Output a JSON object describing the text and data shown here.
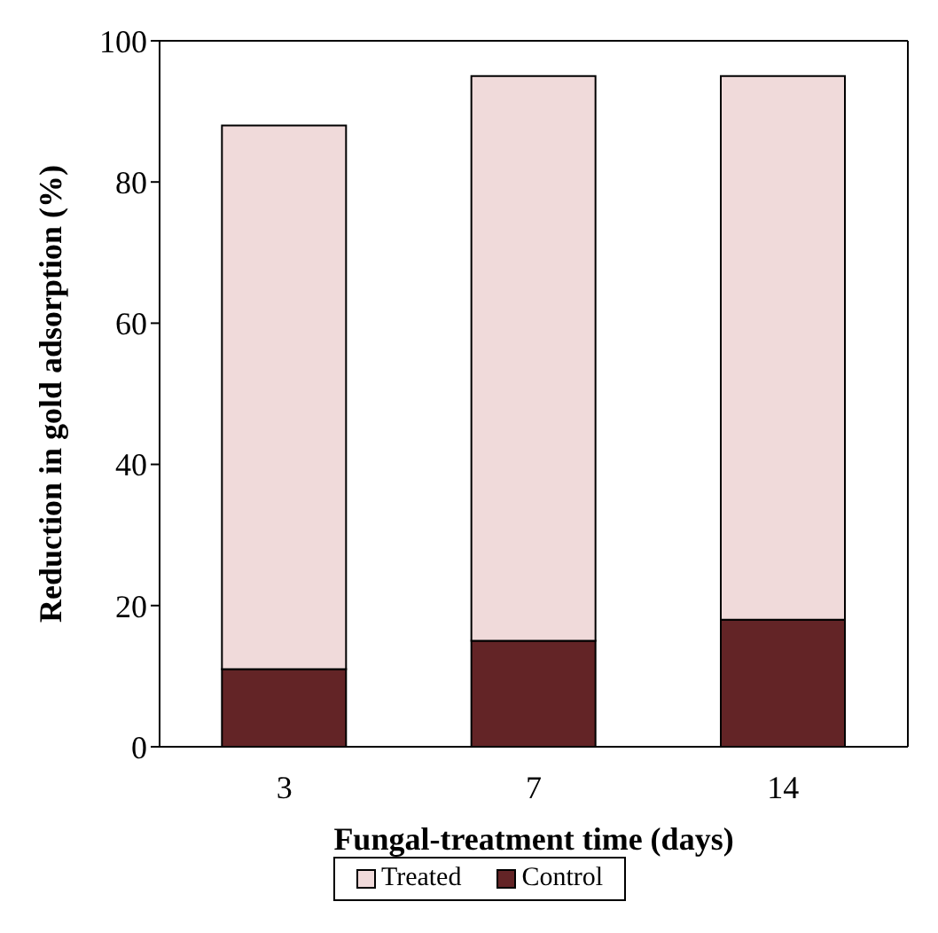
{
  "chart_data": {
    "type": "bar",
    "xlabel": "Fungal-treatment time (days)",
    "ylabel": "Reduction in gold adsorption (%)",
    "categories": [
      "3",
      "7",
      "14"
    ],
    "stacked": true,
    "series": [
      {
        "name": "Control",
        "color": "#632426",
        "values": [
          11,
          15,
          18
        ]
      },
      {
        "name": "Treated",
        "color": "#f0dada",
        "values": [
          77,
          80,
          77
        ]
      }
    ],
    "ylim": [
      0,
      100
    ],
    "yticks": [
      0,
      20,
      40,
      60,
      80,
      100
    ],
    "grid": false,
    "legend": "bottom"
  }
}
